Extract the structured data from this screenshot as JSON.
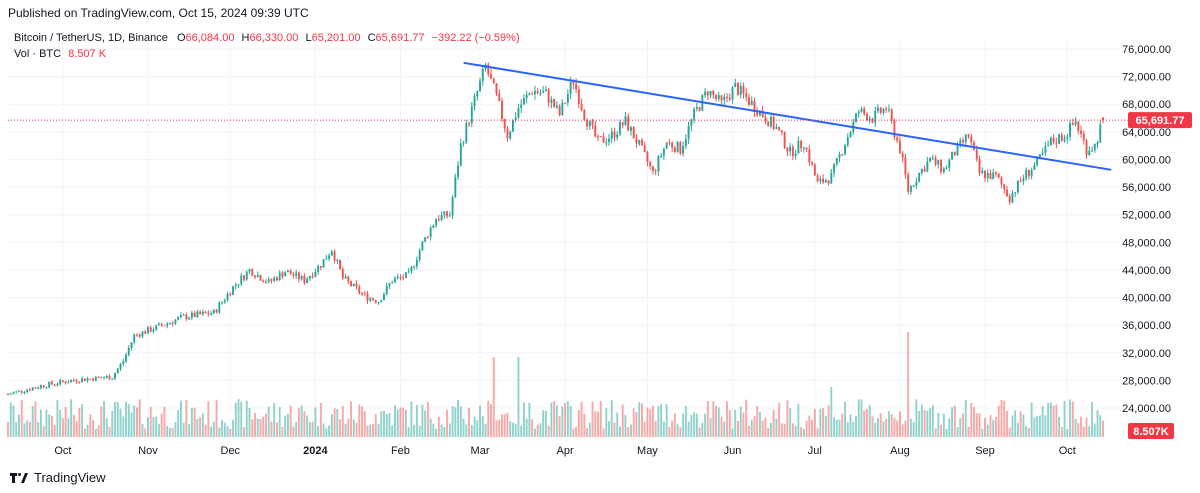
{
  "header": {
    "published": "Published on TradingView.com, Oct 15, 2024 09:39 UTC"
  },
  "legend": {
    "symbol": "Bitcoin / TetherUS, 1D, Binance",
    "open_label": "O",
    "open": "66,084.00",
    "high_label": "H",
    "high": "66,330.00",
    "low_label": "L",
    "low": "65,201.00",
    "close_label": "C",
    "close": "65,691.77",
    "change": "−392.22 (−0.59%)",
    "vol_label": "Vol · BTC",
    "vol_value": "8.507 K"
  },
  "footer": {
    "brand": "TradingView"
  },
  "colors": {
    "up": "#26a69a",
    "down": "#ef5350",
    "trendline": "#2962ff",
    "price_line": "#f23645"
  },
  "chart_data": {
    "type": "candlestick",
    "title": "Bitcoin / TetherUS, 1D, Binance",
    "y_axis": {
      "range": [
        22000,
        77000
      ],
      "ticks": [
        24000,
        28000,
        32000,
        36000,
        40000,
        44000,
        48000,
        52000,
        56000,
        60000,
        64000,
        68000,
        72000,
        76000
      ],
      "tick_labels": [
        "24,000.00",
        "28,000.00",
        "32,000.00",
        "36,000.00",
        "40,000.00",
        "44,000.00",
        "48,000.00",
        "52,000.00",
        "56,000.00",
        "60,000.00",
        "64,000.00",
        "68,000.00",
        "72,000.00",
        "76,000.00"
      ]
    },
    "x_axis": {
      "labels": [
        "Oct",
        "Nov",
        "Dec",
        "2024",
        "Feb",
        "Mar",
        "Apr",
        "May",
        "Jun",
        "Jul",
        "Aug",
        "Sep",
        "Oct"
      ],
      "label_days": [
        20,
        51,
        81,
        112,
        143,
        172,
        203,
        233,
        264,
        294,
        325,
        356,
        386
      ]
    },
    "last_price": 65691.77,
    "last_price_label": "65,691.77",
    "last_volume_label": "8.507K",
    "trendline": {
      "start": {
        "day": 166,
        "price": 74000
      },
      "end": {
        "day": 402,
        "price": 58500
      }
    },
    "total_days": 399,
    "closes": [
      {
        "d": 0,
        "c": 26000
      },
      {
        "d": 12,
        "c": 27200
      },
      {
        "d": 25,
        "c": 28100
      },
      {
        "d": 38,
        "c": 28500
      },
      {
        "d": 42,
        "c": 30800
      },
      {
        "d": 46,
        "c": 34500
      },
      {
        "d": 55,
        "c": 35800
      },
      {
        "d": 64,
        "c": 37200
      },
      {
        "d": 75,
        "c": 37800
      },
      {
        "d": 82,
        "c": 41500
      },
      {
        "d": 88,
        "c": 44000
      },
      {
        "d": 95,
        "c": 42200
      },
      {
        "d": 101,
        "c": 43800
      },
      {
        "d": 108,
        "c": 42500
      },
      {
        "d": 114,
        "c": 44800
      },
      {
        "d": 118,
        "c": 47000
      },
      {
        "d": 122,
        "c": 42800
      },
      {
        "d": 130,
        "c": 40200
      },
      {
        "d": 135,
        "c": 39500
      },
      {
        "d": 140,
        "c": 42500
      },
      {
        "d": 146,
        "c": 43200
      },
      {
        "d": 151,
        "c": 47800
      },
      {
        "d": 156,
        "c": 51500
      },
      {
        "d": 161,
        "c": 52000
      },
      {
        "d": 165,
        "c": 62000
      },
      {
        "d": 170,
        "c": 68500
      },
      {
        "d": 174,
        "c": 73500
      },
      {
        "d": 178,
        "c": 69000
      },
      {
        "d": 182,
        "c": 63500
      },
      {
        "d": 186,
        "c": 67500
      },
      {
        "d": 191,
        "c": 70000
      },
      {
        "d": 196,
        "c": 69500
      },
      {
        "d": 201,
        "c": 66500
      },
      {
        "d": 206,
        "c": 71500
      },
      {
        "d": 210,
        "c": 66500
      },
      {
        "d": 215,
        "c": 62500
      },
      {
        "d": 220,
        "c": 63500
      },
      {
        "d": 225,
        "c": 65500
      },
      {
        "d": 230,
        "c": 62000
      },
      {
        "d": 235,
        "c": 58000
      },
      {
        "d": 240,
        "c": 62500
      },
      {
        "d": 245,
        "c": 61500
      },
      {
        "d": 250,
        "c": 66500
      },
      {
        "d": 255,
        "c": 70000
      },
      {
        "d": 260,
        "c": 68000
      },
      {
        "d": 265,
        "c": 70500
      },
      {
        "d": 270,
        "c": 68500
      },
      {
        "d": 275,
        "c": 66500
      },
      {
        "d": 280,
        "c": 64500
      },
      {
        "d": 285,
        "c": 61000
      },
      {
        "d": 290,
        "c": 62500
      },
      {
        "d": 295,
        "c": 56500
      },
      {
        "d": 300,
        "c": 57500
      },
      {
        "d": 305,
        "c": 62500
      },
      {
        "d": 310,
        "c": 67000
      },
      {
        "d": 315,
        "c": 66000
      },
      {
        "d": 320,
        "c": 67500
      },
      {
        "d": 325,
        "c": 61500
      },
      {
        "d": 328,
        "c": 55500
      },
      {
        "d": 332,
        "c": 58000
      },
      {
        "d": 336,
        "c": 60000
      },
      {
        "d": 341,
        "c": 58500
      },
      {
        "d": 345,
        "c": 61000
      },
      {
        "d": 350,
        "c": 63500
      },
      {
        "d": 354,
        "c": 58000
      },
      {
        "d": 360,
        "c": 57500
      },
      {
        "d": 365,
        "c": 54500
      },
      {
        "d": 370,
        "c": 57500
      },
      {
        "d": 375,
        "c": 59500
      },
      {
        "d": 380,
        "c": 62500
      },
      {
        "d": 385,
        "c": 63500
      },
      {
        "d": 389,
        "c": 65500
      },
      {
        "d": 393,
        "c": 61500
      },
      {
        "d": 396,
        "c": 62000
      },
      {
        "d": 399,
        "c": 65691.77
      }
    ],
    "volume_note": "Volume histogram (BTC), last bar 8.507K"
  }
}
